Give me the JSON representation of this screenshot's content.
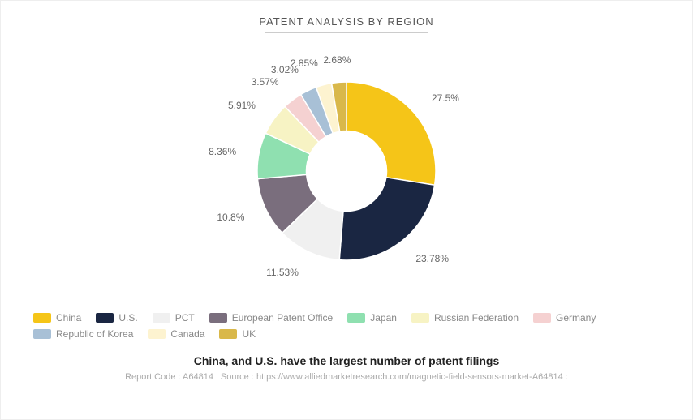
{
  "chart": {
    "type": "donut",
    "title": "PATENT ANALYSIS BY REGION",
    "subtitle": "China, and U.S. have the largest number of patent filings",
    "source": "Report Code : A64814 | Source : https://www.alliedmarketresearch.com/magnetic-field-sensors-market-A64814 :",
    "inner_radius_ratio": 0.45,
    "outer_radius": 110,
    "start_angle_deg": 0,
    "background_color": "#ffffff",
    "title_fontsize": 13,
    "label_fontsize": 12,
    "label_color": "#666666",
    "title_color": "#555555",
    "slices": [
      {
        "label": "China",
        "value": 27.5,
        "color": "#f5c518",
        "display": "27.5%"
      },
      {
        "label": "U.S.",
        "value": 23.78,
        "color": "#1a2642",
        "display": "23.78%"
      },
      {
        "label": "PCT",
        "value": 11.53,
        "color": "#f0f0f0",
        "display": "11.53%"
      },
      {
        "label": "European Patent Office",
        "value": 10.8,
        "color": "#7a6e7d",
        "display": "10.8%"
      },
      {
        "label": "Japan",
        "value": 8.36,
        "color": "#8fe0b0",
        "display": "8.36%"
      },
      {
        "label": "Russian Federation",
        "value": 5.91,
        "color": "#f7f3c4",
        "display": "5.91%"
      },
      {
        "label": "Germany",
        "value": 3.57,
        "color": "#f5d1d1",
        "display": "3.57%"
      },
      {
        "label": "Republic of Korea",
        "value": 3.02,
        "color": "#a8c0d6",
        "display": "3.02%"
      },
      {
        "label": "Canada",
        "value": 2.85,
        "color": "#fdf3d0",
        "display": "2.85%"
      },
      {
        "label": "UK",
        "value": 2.68,
        "color": "#d9b84a",
        "display": "2.68%"
      }
    ]
  }
}
